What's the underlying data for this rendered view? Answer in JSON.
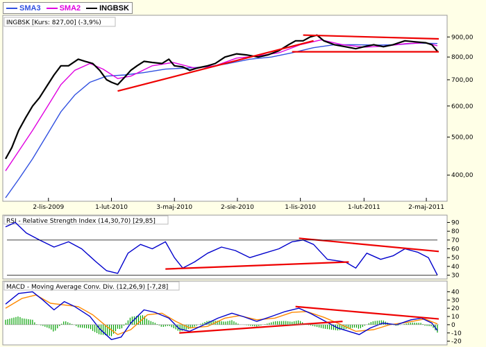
{
  "legend": [
    {
      "label": "SMA3",
      "color": "#3050e0"
    },
    {
      "label": "SMA2",
      "color": "#e000e0"
    },
    {
      "label": "INGBSK",
      "color": "#000000"
    }
  ],
  "panels": {
    "price": {
      "title": "INGBSK [Kurs: 827,00] (-3,9%)"
    },
    "rsi": {
      "title": "RSI - Relative Strength Index (14,30,70) [29,85]"
    },
    "macd": {
      "title": "MACD - Moving Average Conv. Div. (12,26,9) [-7,28]"
    }
  },
  "x_ticks": [
    "2-lis-2009",
    "1-lut-2010",
    "3-maj-2010",
    "2-sie-2010",
    "1-lis-2010",
    "1-lut-2011",
    "2-maj-2011"
  ],
  "price_ticks": [
    "900,00",
    "800,00",
    "700,00",
    "600,00",
    "500,00",
    "400,00"
  ],
  "rsi_ticks": [
    "90",
    "80",
    "70",
    "60",
    "50",
    "40",
    "30"
  ],
  "macd_ticks": [
    "40",
    "30",
    "20",
    "10",
    "0",
    "-10",
    "-20"
  ],
  "colors": {
    "background": "#ffffe7",
    "price": "#000000",
    "sma2": "#e000e0",
    "sma3": "#3050e0",
    "rsi": "#0000cc",
    "macd": "#0000cc",
    "signal": "#ff8800",
    "hist": "#00a000",
    "trendline": "#ee0000"
  },
  "chart_data": [
    {
      "type": "line",
      "title": "INGBSK [Kurs: 827,00] (-3,9%)",
      "scale": "log",
      "ylim": [
        350,
        950
      ],
      "x_range": [
        "2009-09-01",
        "2011-05-20"
      ],
      "series": [
        {
          "name": "INGBSK",
          "color": "#000000",
          "points": [
            [
              "2009-09-01",
              440
            ],
            [
              "2009-09-10",
              470
            ],
            [
              "2009-09-20",
              520
            ],
            [
              "2009-09-30",
              560
            ],
            [
              "2009-10-10",
              600
            ],
            [
              "2009-10-20",
              630
            ],
            [
              "2009-11-01",
              680
            ],
            [
              "2009-11-10",
              720
            ],
            [
              "2009-11-20",
              760
            ],
            [
              "2009-12-01",
              760
            ],
            [
              "2009-12-15",
              790
            ],
            [
              "2009-12-25",
              780
            ],
            [
              "2010-01-05",
              770
            ],
            [
              "2010-01-15",
              740
            ],
            [
              "2010-01-25",
              700
            ],
            [
              "2010-02-01",
              690
            ],
            [
              "2010-02-10",
              680
            ],
            [
              "2010-02-20",
              710
            ],
            [
              "2010-03-01",
              740
            ],
            [
              "2010-03-10",
              760
            ],
            [
              "2010-03-20",
              780
            ],
            [
              "2010-04-01",
              775
            ],
            [
              "2010-04-15",
              770
            ],
            [
              "2010-04-25",
              790
            ],
            [
              "2010-05-03",
              760
            ],
            [
              "2010-05-15",
              755
            ],
            [
              "2010-05-25",
              740
            ],
            [
              "2010-06-05",
              750
            ],
            [
              "2010-06-20",
              760
            ],
            [
              "2010-07-01",
              770
            ],
            [
              "2010-07-15",
              800
            ],
            [
              "2010-08-01",
              815
            ],
            [
              "2010-08-15",
              810
            ],
            [
              "2010-09-01",
              800
            ],
            [
              "2010-09-15",
              810
            ],
            [
              "2010-10-01",
              830
            ],
            [
              "2010-10-15",
              860
            ],
            [
              "2010-10-25",
              880
            ],
            [
              "2010-11-05",
              880
            ],
            [
              "2010-11-15",
              900
            ],
            [
              "2010-11-25",
              910
            ],
            [
              "2010-12-05",
              880
            ],
            [
              "2010-12-20",
              860
            ],
            [
              "2011-01-05",
              850
            ],
            [
              "2011-01-20",
              840
            ],
            [
              "2011-02-01",
              850
            ],
            [
              "2011-02-15",
              860
            ],
            [
              "2011-03-01",
              850
            ],
            [
              "2011-03-15",
              860
            ],
            [
              "2011-04-01",
              880
            ],
            [
              "2011-04-15",
              875
            ],
            [
              "2011-05-01",
              870
            ],
            [
              "2011-05-10",
              860
            ],
            [
              "2011-05-18",
              827
            ]
          ]
        },
        {
          "name": "SMA2",
          "color": "#e000e0",
          "points": [
            [
              "2009-09-01",
              410
            ],
            [
              "2009-09-20",
              460
            ],
            [
              "2009-10-10",
              520
            ],
            [
              "2009-11-01",
              600
            ],
            [
              "2009-11-20",
              680
            ],
            [
              "2009-12-10",
              740
            ],
            [
              "2010-01-01",
              770
            ],
            [
              "2010-01-20",
              745
            ],
            [
              "2010-02-10",
              705
            ],
            [
              "2010-03-01",
              715
            ],
            [
              "2010-04-01",
              760
            ],
            [
              "2010-05-01",
              775
            ],
            [
              "2010-06-01",
              750
            ],
            [
              "2010-07-01",
              760
            ],
            [
              "2010-08-01",
              795
            ],
            [
              "2010-09-01",
              805
            ],
            [
              "2010-10-01",
              820
            ],
            [
              "2010-11-01",
              860
            ],
            [
              "2010-12-01",
              885
            ],
            [
              "2011-01-01",
              860
            ],
            [
              "2011-02-01",
              848
            ],
            [
              "2011-03-01",
              852
            ],
            [
              "2011-04-01",
              865
            ],
            [
              "2011-05-01",
              870
            ],
            [
              "2011-05-18",
              855
            ]
          ]
        },
        {
          "name": "SMA3",
          "color": "#3050e0",
          "points": [
            [
              "2009-09-01",
              350
            ],
            [
              "2009-09-20",
              390
            ],
            [
              "2009-10-10",
              440
            ],
            [
              "2009-11-01",
              510
            ],
            [
              "2009-11-20",
              580
            ],
            [
              "2009-12-10",
              640
            ],
            [
              "2010-01-01",
              690
            ],
            [
              "2010-01-25",
              715
            ],
            [
              "2010-02-20",
              720
            ],
            [
              "2010-03-20",
              730
            ],
            [
              "2010-04-20",
              745
            ],
            [
              "2010-05-20",
              750
            ],
            [
              "2010-06-20",
              755
            ],
            [
              "2010-07-20",
              770
            ],
            [
              "2010-08-20",
              790
            ],
            [
              "2010-09-20",
              800
            ],
            [
              "2010-10-20",
              820
            ],
            [
              "2010-11-20",
              845
            ],
            [
              "2010-12-20",
              860
            ],
            [
              "2011-01-20",
              860
            ],
            [
              "2011-02-20",
              858
            ],
            [
              "2011-03-20",
              860
            ],
            [
              "2011-04-20",
              868
            ],
            [
              "2011-05-18",
              866
            ]
          ]
        }
      ],
      "trendlines": [
        [
          [
            "2010-02-10",
            655
          ],
          [
            "2010-11-20",
            880
          ]
        ],
        [
          [
            "2010-11-05",
            910
          ],
          [
            "2011-05-20",
            890
          ]
        ],
        [
          [
            "2010-10-20",
            825
          ],
          [
            "2011-05-20",
            825
          ]
        ]
      ]
    },
    {
      "type": "line",
      "title": "RSI - Relative Strength Index (14,30,70) [29,85]",
      "ylim": [
        28,
        92
      ],
      "reference_lines": [
        30,
        70
      ],
      "series": [
        {
          "name": "RSI",
          "color": "#0000cc",
          "points": [
            [
              "2009-09-01",
              85
            ],
            [
              "2009-09-15",
              90
            ],
            [
              "2009-10-01",
              78
            ],
            [
              "2009-10-20",
              70
            ],
            [
              "2009-11-10",
              62
            ],
            [
              "2009-12-01",
              68
            ],
            [
              "2009-12-20",
              60
            ],
            [
              "2010-01-10",
              45
            ],
            [
              "2010-01-25",
              35
            ],
            [
              "2010-02-10",
              32
            ],
            [
              "2010-02-25",
              55
            ],
            [
              "2010-03-15",
              65
            ],
            [
              "2010-04-01",
              60
            ],
            [
              "2010-04-20",
              68
            ],
            [
              "2010-05-03",
              50
            ],
            [
              "2010-05-15",
              38
            ],
            [
              "2010-06-01",
              45
            ],
            [
              "2010-06-20",
              55
            ],
            [
              "2010-07-10",
              62
            ],
            [
              "2010-07-30",
              58
            ],
            [
              "2010-08-20",
              50
            ],
            [
              "2010-09-10",
              55
            ],
            [
              "2010-10-01",
              60
            ],
            [
              "2010-10-20",
              68
            ],
            [
              "2010-11-05",
              70
            ],
            [
              "2010-11-20",
              65
            ],
            [
              "2010-12-10",
              48
            ],
            [
              "2011-01-05",
              45
            ],
            [
              "2011-01-20",
              38
            ],
            [
              "2011-02-05",
              55
            ],
            [
              "2011-02-25",
              48
            ],
            [
              "2011-03-15",
              52
            ],
            [
              "2011-04-01",
              60
            ],
            [
              "2011-04-20",
              56
            ],
            [
              "2011-05-05",
              50
            ],
            [
              "2011-05-18",
              30
            ]
          ]
        }
      ],
      "trendlines": [
        [
          [
            "2010-04-20",
            37
          ],
          [
            "2011-01-10",
            45
          ]
        ],
        [
          [
            "2010-10-30",
            72
          ],
          [
            "2011-05-20",
            57
          ]
        ]
      ]
    },
    {
      "type": "line",
      "title": "MACD - Moving Average Conv. Div. (12,26,9) [-7,28]",
      "ylim": [
        -22,
        42
      ],
      "series": [
        {
          "name": "MACD",
          "color": "#0000cc",
          "points": [
            [
              "2009-09-01",
              25
            ],
            [
              "2009-09-20",
              38
            ],
            [
              "2009-10-10",
              40
            ],
            [
              "2009-10-25",
              30
            ],
            [
              "2009-11-10",
              18
            ],
            [
              "2009-11-25",
              28
            ],
            [
              "2009-12-10",
              22
            ],
            [
              "2010-01-01",
              10
            ],
            [
              "2010-01-15",
              -5
            ],
            [
              "2010-02-01",
              -18
            ],
            [
              "2010-02-15",
              -15
            ],
            [
              "2010-03-01",
              2
            ],
            [
              "2010-03-20",
              18
            ],
            [
              "2010-04-05",
              15
            ],
            [
              "2010-04-25",
              8
            ],
            [
              "2010-05-10",
              -5
            ],
            [
              "2010-05-25",
              -8
            ],
            [
              "2010-06-15",
              0
            ],
            [
              "2010-07-05",
              8
            ],
            [
              "2010-07-25",
              14
            ],
            [
              "2010-08-10",
              10
            ],
            [
              "2010-08-30",
              4
            ],
            [
              "2010-09-20",
              10
            ],
            [
              "2010-10-10",
              16
            ],
            [
              "2010-10-30",
              20
            ],
            [
              "2010-11-15",
              14
            ],
            [
              "2010-12-05",
              5
            ],
            [
              "2010-12-25",
              -4
            ],
            [
              "2011-01-10",
              -8
            ],
            [
              "2011-01-25",
              -12
            ],
            [
              "2011-02-10",
              -4
            ],
            [
              "2011-02-28",
              2
            ],
            [
              "2011-03-20",
              0
            ],
            [
              "2011-04-10",
              6
            ],
            [
              "2011-04-25",
              8
            ],
            [
              "2011-05-10",
              2
            ],
            [
              "2011-05-18",
              -7
            ]
          ]
        },
        {
          "name": "Signal",
          "color": "#ff8800",
          "points": [
            [
              "2009-09-01",
              20
            ],
            [
              "2009-09-25",
              32
            ],
            [
              "2009-10-15",
              36
            ],
            [
              "2009-11-05",
              26
            ],
            [
              "2009-11-25",
              24
            ],
            [
              "2009-12-15",
              22
            ],
            [
              "2010-01-05",
              12
            ],
            [
              "2010-01-25",
              -2
            ],
            [
              "2010-02-10",
              -12
            ],
            [
              "2010-03-01",
              -6
            ],
            [
              "2010-03-25",
              12
            ],
            [
              "2010-04-15",
              14
            ],
            [
              "2010-05-05",
              4
            ],
            [
              "2010-05-25",
              -4
            ],
            [
              "2010-06-20",
              -2
            ],
            [
              "2010-07-15",
              8
            ],
            [
              "2010-08-05",
              11
            ],
            [
              "2010-08-30",
              6
            ],
            [
              "2010-09-25",
              8
            ],
            [
              "2010-10-20",
              15
            ],
            [
              "2010-11-10",
              16
            ],
            [
              "2010-12-05",
              9
            ],
            [
              "2010-12-30",
              0
            ],
            [
              "2011-01-20",
              -8
            ],
            [
              "2011-02-15",
              -6
            ],
            [
              "2011-03-10",
              0
            ],
            [
              "2011-04-05",
              3
            ],
            [
              "2011-04-30",
              7
            ],
            [
              "2011-05-18",
              1
            ]
          ]
        }
      ],
      "trendlines": [
        [
          [
            "2010-05-10",
            -10
          ],
          [
            "2011-01-01",
            4
          ]
        ],
        [
          [
            "2010-10-25",
            22
          ],
          [
            "2011-05-20",
            7
          ]
        ]
      ]
    }
  ]
}
